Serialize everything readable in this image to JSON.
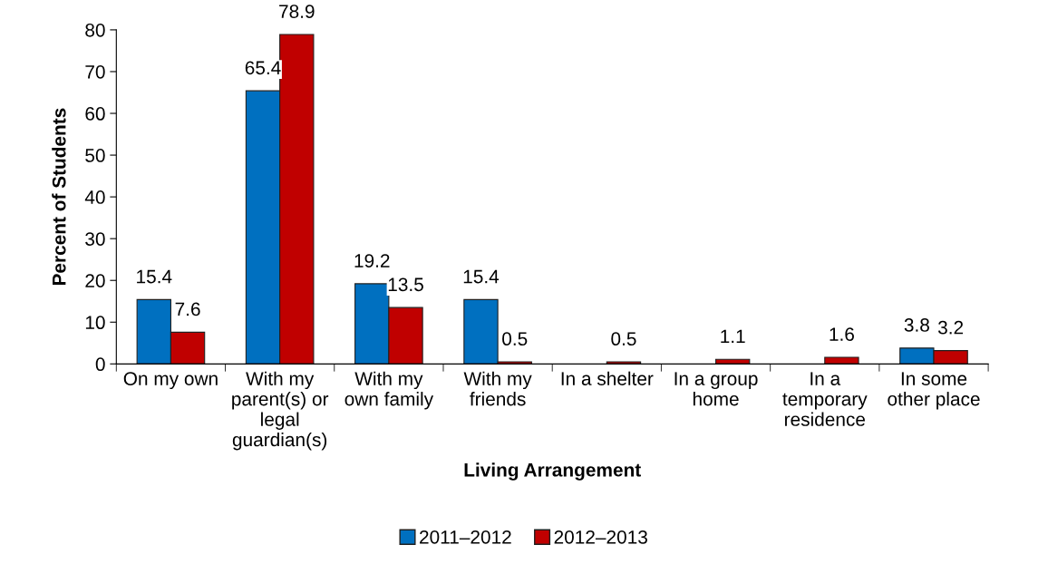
{
  "chart_data": {
    "type": "bar",
    "xlabel": "Living Arrangement",
    "ylabel": "Percent of Students",
    "categories": [
      "On my own",
      "With my\nparent(s) or\nlegal\nguardian(s)",
      "With my\nown family",
      "With my\nfriends",
      "In a shelter",
      "In a group\nhome",
      "In a\ntemporary\nresidence",
      "In some\nother place"
    ],
    "series": [
      {
        "name": "2011–2012",
        "color": "#0070c0",
        "values": [
          15.4,
          65.4,
          19.2,
          15.4,
          null,
          null,
          null,
          3.8
        ]
      },
      {
        "name": "2012–2013",
        "color": "#c00000",
        "values": [
          7.6,
          78.9,
          13.5,
          0.5,
          0.5,
          1.1,
          1.6,
          3.2
        ]
      }
    ],
    "ylim": [
      0,
      80
    ],
    "yticks": [
      0,
      10,
      20,
      30,
      40,
      50,
      60,
      70,
      80
    ],
    "data_labels": true,
    "grid": false,
    "legend": "bottom"
  }
}
